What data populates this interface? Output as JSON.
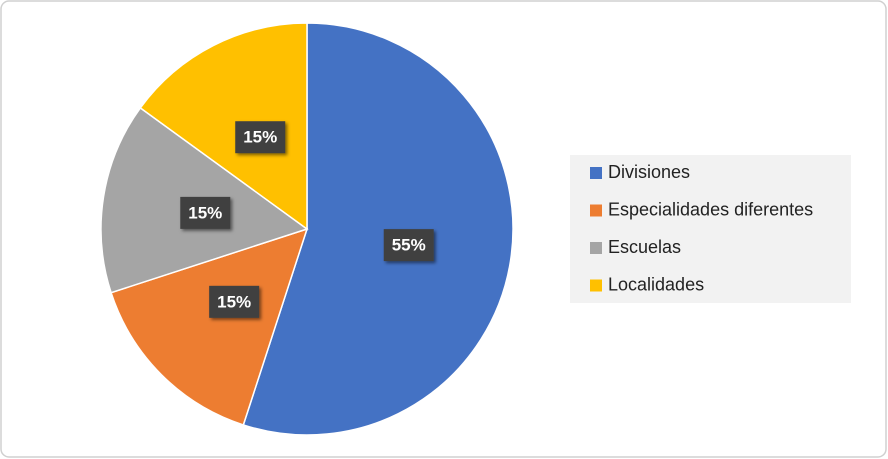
{
  "chart_data": {
    "type": "pie",
    "categories": [
      "Divisiones",
      "Especialidades diferentes",
      "Escuelas",
      "Localidades"
    ],
    "values": [
      55,
      15,
      15,
      15
    ],
    "value_labels": [
      "55%",
      "15%",
      "15%",
      "15%"
    ],
    "colors": [
      "#4472c4",
      "#ed7d31",
      "#a5a5a5",
      "#ffc000"
    ],
    "legend": "right"
  }
}
